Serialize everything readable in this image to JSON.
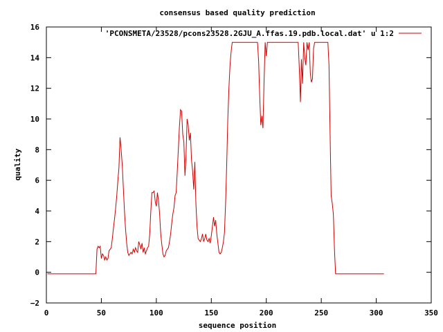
{
  "chart_data": {
    "type": "line",
    "title": "consensus based quality prediction",
    "xlabel": "sequence position",
    "ylabel": "quality",
    "xlim": [
      0,
      350
    ],
    "ylim": [
      -2,
      16
    ],
    "x_ticks": [
      0,
      50,
      100,
      150,
      200,
      250,
      300,
      350
    ],
    "y_ticks": [
      -2,
      0,
      2,
      4,
      6,
      8,
      10,
      12,
      14,
      16
    ],
    "x_tick_labels": [
      "0",
      "50",
      "100",
      "150",
      "200",
      "250",
      "300",
      "350"
    ],
    "y_tick_labels": [
      "−2",
      "0",
      "2",
      "4",
      "6",
      "8",
      "10",
      "12",
      "14",
      "16"
    ],
    "grid": false,
    "legend_position": "top-right",
    "series": [
      {
        "name": "'PCONSMETA/23528/pcons23528.2GJU_A.ffas.19.pdb.local.dat' u 1:2",
        "color": "#cc0000",
        "points": [
          [
            1,
            -0.1
          ],
          [
            45,
            -0.1
          ],
          [
            46,
            1.5
          ],
          [
            47,
            1.7
          ],
          [
            48,
            1.6
          ],
          [
            49,
            1.7
          ],
          [
            50,
            0.9
          ],
          [
            51,
            1.2
          ],
          [
            52,
            1.1
          ],
          [
            53,
            0.8
          ],
          [
            54,
            1.0
          ],
          [
            55,
            0.8
          ],
          [
            56,
            0.9
          ],
          [
            57,
            1.4
          ],
          [
            58,
            1.5
          ],
          [
            59,
            1.6
          ],
          [
            60,
            2.2
          ],
          [
            61,
            2.9
          ],
          [
            62,
            3.5
          ],
          [
            63,
            4.2
          ],
          [
            64,
            5.0
          ],
          [
            65,
            6.0
          ],
          [
            66,
            6.8
          ],
          [
            67,
            8.8
          ],
          [
            68,
            8.0
          ],
          [
            69,
            7.0
          ],
          [
            70,
            5.5
          ],
          [
            71,
            4.0
          ],
          [
            72,
            2.8
          ],
          [
            73,
            1.9
          ],
          [
            74,
            1.3
          ],
          [
            75,
            1.1
          ],
          [
            76,
            1.2
          ],
          [
            77,
            1.3
          ],
          [
            78,
            1.2
          ],
          [
            79,
            1.5
          ],
          [
            80,
            1.3
          ],
          [
            81,
            1.6
          ],
          [
            82,
            1.4
          ],
          [
            83,
            1.3
          ],
          [
            84,
            2.0
          ],
          [
            85,
            1.8
          ],
          [
            86,
            1.5
          ],
          [
            87,
            1.9
          ],
          [
            88,
            1.3
          ],
          [
            89,
            1.6
          ],
          [
            90,
            1.2
          ],
          [
            91,
            1.4
          ],
          [
            92,
            1.6
          ],
          [
            93,
            1.7
          ],
          [
            94,
            2.5
          ],
          [
            95,
            4.0
          ],
          [
            96,
            5.2
          ],
          [
            97,
            5.2
          ],
          [
            98,
            5.3
          ],
          [
            99,
            4.6
          ],
          [
            100,
            4.3
          ],
          [
            101,
            5.2
          ],
          [
            102,
            4.7
          ],
          [
            103,
            3.8
          ],
          [
            104,
            2.5
          ],
          [
            105,
            1.8
          ],
          [
            106,
            1.2
          ],
          [
            107,
            1.0
          ],
          [
            108,
            1.1
          ],
          [
            109,
            1.4
          ],
          [
            110,
            1.5
          ],
          [
            111,
            1.6
          ],
          [
            112,
            2.0
          ],
          [
            113,
            2.5
          ],
          [
            114,
            3.2
          ],
          [
            115,
            3.8
          ],
          [
            116,
            4.2
          ],
          [
            117,
            5.0
          ],
          [
            118,
            5.2
          ],
          [
            119,
            6.5
          ],
          [
            120,
            8.0
          ],
          [
            121,
            9.5
          ],
          [
            122,
            10.6
          ],
          [
            123,
            10.5
          ],
          [
            124,
            9.0
          ],
          [
            125,
            8.5
          ],
          [
            126,
            6.3
          ],
          [
            127,
            7.5
          ],
          [
            128,
            10.0
          ],
          [
            129,
            9.6
          ],
          [
            130,
            8.6
          ],
          [
            131,
            9.1
          ],
          [
            132,
            7.3
          ],
          [
            133,
            6.6
          ],
          [
            134,
            5.4
          ],
          [
            135,
            7.2
          ],
          [
            136,
            4.5
          ],
          [
            137,
            3.0
          ],
          [
            138,
            2.2
          ],
          [
            139,
            2.1
          ],
          [
            140,
            2.0
          ],
          [
            141,
            2.2
          ],
          [
            142,
            2.5
          ],
          [
            143,
            2.0
          ],
          [
            144,
            2.2
          ],
          [
            145,
            2.5
          ],
          [
            146,
            2.1
          ],
          [
            147,
            2.0
          ],
          [
            148,
            2.2
          ],
          [
            149,
            1.9
          ],
          [
            150,
            2.4
          ],
          [
            151,
            3.0
          ],
          [
            152,
            3.6
          ],
          [
            153,
            3.0
          ],
          [
            154,
            3.4
          ],
          [
            155,
            2.5
          ],
          [
            156,
            1.9
          ],
          [
            157,
            1.3
          ],
          [
            158,
            1.2
          ],
          [
            159,
            1.3
          ],
          [
            160,
            1.6
          ],
          [
            161,
            2.0
          ],
          [
            162,
            2.6
          ],
          [
            163,
            4.5
          ],
          [
            164,
            7.0
          ],
          [
            165,
            10.0
          ],
          [
            166,
            12.0
          ],
          [
            167,
            13.5
          ],
          [
            168,
            14.4
          ],
          [
            169,
            15.0
          ],
          [
            192,
            15.0
          ],
          [
            193,
            13.8
          ],
          [
            194,
            11.5
          ],
          [
            195,
            9.6
          ],
          [
            196,
            10.2
          ],
          [
            197,
            9.4
          ],
          [
            198,
            12.5
          ],
          [
            199,
            15.0
          ],
          [
            200,
            14.1
          ],
          [
            201,
            15.0
          ],
          [
            229,
            15.0
          ],
          [
            230,
            13.3
          ],
          [
            231,
            11.1
          ],
          [
            232,
            13.9
          ],
          [
            233,
            12.3
          ],
          [
            234,
            15.0
          ],
          [
            235,
            14.0
          ],
          [
            236,
            13.5
          ],
          [
            237,
            15.0
          ],
          [
            238,
            14.5
          ],
          [
            239,
            15.0
          ],
          [
            240,
            13.0
          ],
          [
            241,
            12.4
          ],
          [
            242,
            12.6
          ],
          [
            243,
            14.6
          ],
          [
            244,
            15.0
          ],
          [
            256,
            15.0
          ],
          [
            257,
            13.5
          ],
          [
            258,
            9.0
          ],
          [
            259,
            5.0
          ],
          [
            260,
            4.5
          ],
          [
            261,
            3.8
          ],
          [
            262,
            1.5
          ],
          [
            263,
            -0.1
          ],
          [
            307,
            -0.1
          ]
        ]
      }
    ]
  }
}
